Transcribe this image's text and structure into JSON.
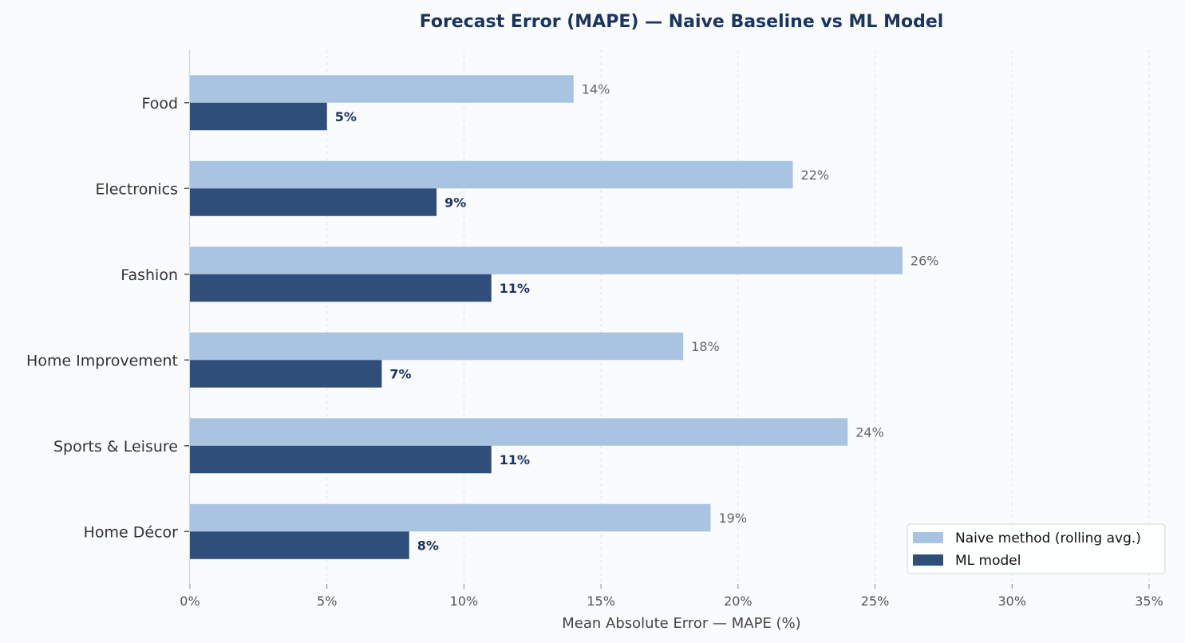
{
  "chart_data": {
    "type": "bar",
    "orientation": "horizontal",
    "title": "Forecast Error (MAPE) — Naive Baseline vs ML Model",
    "xlabel": "Mean Absolute Error — MAPE (%)",
    "ylabel": "",
    "xlim": [
      0,
      35
    ],
    "xticks": [
      0,
      5,
      10,
      15,
      20,
      25,
      30,
      35
    ],
    "tick_format": "{v}%",
    "grid": "vertical-dashed",
    "legend_position": "bottom-right",
    "categories": [
      "Food",
      "Electronics",
      "Fashion",
      "Home Improvement",
      "Sports & Leisure",
      "Home Décor"
    ],
    "series": [
      {
        "name": "Naive method (rolling avg.)",
        "color": "#a9c4e1",
        "values": [
          14,
          22,
          26,
          18,
          24,
          19
        ],
        "labels": [
          "14%",
          "22%",
          "26%",
          "18%",
          "24%",
          "19%"
        ]
      },
      {
        "name": "ML model",
        "color": "#2f4e7a",
        "values": [
          5,
          9,
          11,
          7,
          11,
          8
        ],
        "labels": [
          "5%",
          "9%",
          "11%",
          "7%",
          "11%",
          "8%"
        ]
      }
    ]
  }
}
